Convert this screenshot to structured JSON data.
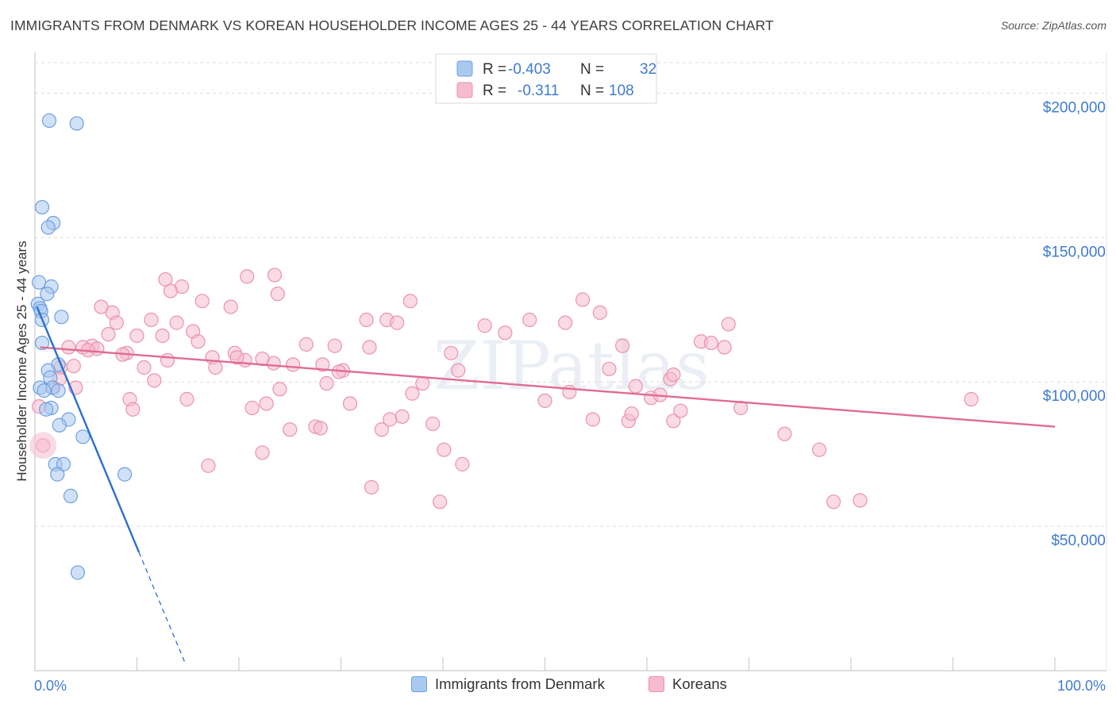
{
  "title": "IMMIGRANTS FROM DENMARK VS KOREAN HOUSEHOLDER INCOME AGES 25 - 44 YEARS CORRELATION CHART",
  "source": "Source: ZipAtlas.com",
  "watermark": "ZIPatlas",
  "colors": {
    "blue_fill": "#a9c9f0",
    "blue_stroke": "#6e9fe0",
    "blue_line": "#2b6fcf",
    "pink_fill": "#f6bccd",
    "pink_stroke": "#ea93ae",
    "pink_line": "#e06b93",
    "tick_text": "#3f7bd0"
  },
  "legend_box": {
    "rows": [
      {
        "r_label": "R = ",
        "r_value": "-0.403",
        "n_label": "N = ",
        "n_value": "32"
      },
      {
        "r_label": "R = ",
        "r_value": "-0.311",
        "n_label": "N = ",
        "n_value": "108"
      }
    ]
  },
  "bottom_legend": {
    "series1": "Immigrants from Denmark",
    "series2": "Koreans"
  },
  "chart_data": {
    "type": "scatter",
    "title": "IMMIGRANTS FROM DENMARK VS KOREAN HOUSEHOLDER INCOME AGES 25 - 44 YEARS CORRELATION CHART",
    "xlabel": "",
    "ylabel": "Householder Income Ages 25 - 44 years",
    "xlim": [
      0,
      100
    ],
    "ylim": [
      0,
      210000
    ],
    "x_tick_labels": [
      "0.0%",
      "100.0%"
    ],
    "y_ticks": [
      50000,
      100000,
      150000,
      200000
    ],
    "y_tick_labels": [
      "$50,000",
      "$100,000",
      "$150,000",
      "$200,000"
    ],
    "grid": true,
    "legend_position": "top-center",
    "series": [
      {
        "name": "Immigrants from Denmark",
        "R": -0.403,
        "N": 32,
        "trend": {
          "x_start": 0.2,
          "y_start": 126000,
          "x_end": 10.2,
          "y_end": 41000,
          "dashed_to_x": 14.8,
          "dashed_to_y": 2000
        },
        "points": [
          [
            1.4,
            190500
          ],
          [
            4.1,
            189500
          ],
          [
            0.7,
            160500
          ],
          [
            1.8,
            155000
          ],
          [
            1.3,
            153500
          ],
          [
            0.4,
            134500
          ],
          [
            1.6,
            133000
          ],
          [
            1.2,
            130500
          ],
          [
            0.3,
            127000
          ],
          [
            0.5,
            125500
          ],
          [
            0.6,
            124500
          ],
          [
            2.6,
            122500
          ],
          [
            0.7,
            121500
          ],
          [
            0.7,
            113500
          ],
          [
            2.3,
            106000
          ],
          [
            1.3,
            104000
          ],
          [
            1.5,
            101500
          ],
          [
            1.7,
            98000
          ],
          [
            2.3,
            97000
          ],
          [
            1.6,
            91000
          ],
          [
            1.1,
            90500
          ],
          [
            3.3,
            87000
          ],
          [
            2.4,
            85000
          ],
          [
            4.7,
            81000
          ],
          [
            2.0,
            71500
          ],
          [
            2.8,
            71500
          ],
          [
            2.2,
            68000
          ],
          [
            8.8,
            68000
          ],
          [
            3.5,
            60500
          ],
          [
            4.2,
            34000
          ],
          [
            0.5,
            98000
          ],
          [
            0.9,
            97000
          ]
        ]
      },
      {
        "name": "Koreans",
        "R": -0.311,
        "N": 108,
        "trend": {
          "x_start": 0.5,
          "y_start": 112000,
          "x_end": 100,
          "y_end": 84500
        },
        "points": [
          [
            12.8,
            135500
          ],
          [
            14.4,
            133000
          ],
          [
            13.3,
            131500
          ],
          [
            20.8,
            136500
          ],
          [
            23.5,
            137000
          ],
          [
            23.8,
            130500
          ],
          [
            16.4,
            128000
          ],
          [
            19.2,
            126000
          ],
          [
            6.5,
            126000
          ],
          [
            7.6,
            124000
          ],
          [
            8.0,
            120500
          ],
          [
            11.4,
            121500
          ],
          [
            13.9,
            120500
          ],
          [
            15.5,
            117500
          ],
          [
            7.2,
            116500
          ],
          [
            10.0,
            116000
          ],
          [
            12.5,
            116000
          ],
          [
            16.0,
            114000
          ],
          [
            5.6,
            112500
          ],
          [
            3.3,
            112000
          ],
          [
            6.1,
            111500
          ],
          [
            4.7,
            112000
          ],
          [
            9.0,
            110000
          ],
          [
            8.6,
            109500
          ],
          [
            13.0,
            107500
          ],
          [
            17.4,
            108500
          ],
          [
            19.6,
            110000
          ],
          [
            17.7,
            105000
          ],
          [
            3.8,
            105500
          ],
          [
            2.5,
            105000
          ],
          [
            10.7,
            105000
          ],
          [
            20.6,
            107500
          ],
          [
            19.8,
            108500
          ],
          [
            23.4,
            106500
          ],
          [
            26.6,
            113000
          ],
          [
            29.4,
            112500
          ],
          [
            28.2,
            106000
          ],
          [
            30.2,
            104000
          ],
          [
            29.8,
            103500
          ],
          [
            22.3,
            108000
          ],
          [
            25.3,
            106000
          ],
          [
            32.5,
            121500
          ],
          [
            34.5,
            121500
          ],
          [
            32.8,
            112000
          ],
          [
            36.8,
            128000
          ],
          [
            35.5,
            120500
          ],
          [
            28.6,
            99500
          ],
          [
            30.9,
            92500
          ],
          [
            24.0,
            97500
          ],
          [
            22.7,
            92500
          ],
          [
            21.3,
            91000
          ],
          [
            27.5,
            84500
          ],
          [
            28.0,
            84000
          ],
          [
            25.0,
            83500
          ],
          [
            22.3,
            75500
          ],
          [
            17.0,
            71000
          ],
          [
            14.9,
            94000
          ],
          [
            11.7,
            100500
          ],
          [
            9.3,
            94000
          ],
          [
            9.6,
            90500
          ],
          [
            5.2,
            111000
          ],
          [
            4.0,
            98000
          ],
          [
            2.4,
            101000
          ],
          [
            1.8,
            98000
          ],
          [
            0.4,
            91500
          ],
          [
            34.0,
            83500
          ],
          [
            36.0,
            88000
          ],
          [
            34.8,
            87000
          ],
          [
            38.0,
            99500
          ],
          [
            37.0,
            96000
          ],
          [
            39.0,
            85500
          ],
          [
            40.8,
            110000
          ],
          [
            40.1,
            76500
          ],
          [
            41.5,
            104000
          ],
          [
            41.9,
            71500
          ],
          [
            39.7,
            58500
          ],
          [
            33.0,
            63500
          ],
          [
            44.1,
            119500
          ],
          [
            46.1,
            117000
          ],
          [
            48.5,
            121500
          ],
          [
            52.0,
            120500
          ],
          [
            50.0,
            93500
          ],
          [
            53.7,
            128500
          ],
          [
            55.4,
            124000
          ],
          [
            56.3,
            104500
          ],
          [
            52.4,
            96500
          ],
          [
            54.7,
            87000
          ],
          [
            58.2,
            86500
          ],
          [
            58.5,
            89000
          ],
          [
            58.9,
            98500
          ],
          [
            60.4,
            94500
          ],
          [
            57.6,
            112500
          ],
          [
            62.3,
            101000
          ],
          [
            61.3,
            95500
          ],
          [
            62.6,
            86500
          ],
          [
            63.3,
            90000
          ],
          [
            65.3,
            114000
          ],
          [
            66.3,
            113500
          ],
          [
            68.0,
            120000
          ],
          [
            67.6,
            112000
          ],
          [
            62.6,
            102500
          ],
          [
            69.2,
            91000
          ],
          [
            73.5,
            82000
          ],
          [
            76.9,
            76500
          ],
          [
            78.3,
            58500
          ],
          [
            80.9,
            59000
          ],
          [
            91.8,
            94000
          ],
          [
            0.8,
            78000
          ]
        ]
      }
    ]
  }
}
